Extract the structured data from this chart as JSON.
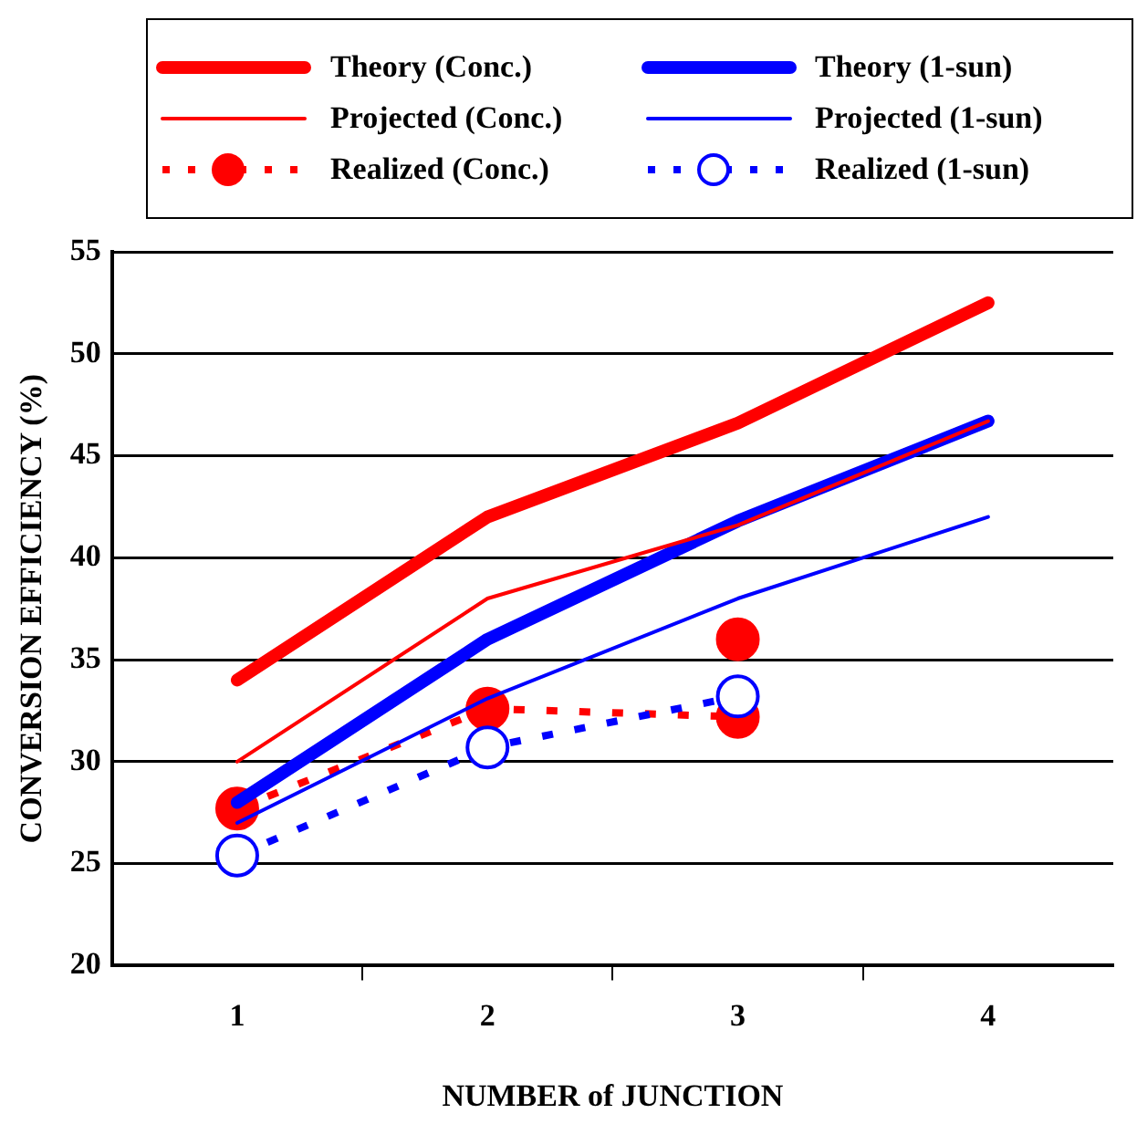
{
  "chart_data": {
    "type": "line",
    "xlabel": "NUMBER of JUNCTION",
    "ylabel": "CONVERSION EFFICIENCY (%)",
    "x": [
      1,
      2,
      3,
      4
    ],
    "xlim": [
      0.5,
      4.5
    ],
    "xticks": [
      1,
      {
        "value": 1.5,
        "label": null
      },
      2,
      {
        "value": 2.5,
        "label": null
      },
      3,
      {
        "value": 3.5,
        "label": null
      },
      4
    ],
    "ylim": [
      20,
      55
    ],
    "yticks": [
      20,
      25,
      30,
      35,
      40,
      45,
      50,
      55
    ],
    "grid": "y",
    "legend": "top",
    "marker": "none",
    "line_style": "solid",
    "series": [
      {
        "name": "Theory (Conc.)",
        "color": "#ff0000",
        "values": [
          34,
          42,
          46.6,
          52.5
        ]
      },
      {
        "name": "Theory (1-sun)",
        "color": "#0000ff",
        "values": [
          28,
          36,
          41.8,
          46.7
        ]
      },
      {
        "name": "Projected (Conc.)",
        "color": "#ff0000",
        "values": [
          30,
          38,
          41.6,
          46.7
        ]
      },
      {
        "name": "Projected (1-sun)",
        "color": "#0000ff",
        "values": [
          27,
          33.1,
          38,
          42
        ]
      },
      {
        "name": "Realized (Conc.)",
        "color": "#ff0000",
        "x": [
          1,
          2,
          3
        ],
        "values": [
          27.7,
          32.6,
          32.2
        ],
        "marker": "circle",
        "line_style": "dashed"
      },
      {
        "name": "Realized (1-sun)",
        "color": "#0000ff",
        "x": [
          1,
          2,
          3
        ],
        "values": [
          25.4,
          30.7,
          33.2
        ],
        "marker": "circle",
        "line_style": "dashed"
      },
      {
        "type": "scatter",
        "color": "#ff0000",
        "x": [
          3
        ],
        "values": [
          36
        ],
        "marker": "circle"
      }
    ]
  }
}
